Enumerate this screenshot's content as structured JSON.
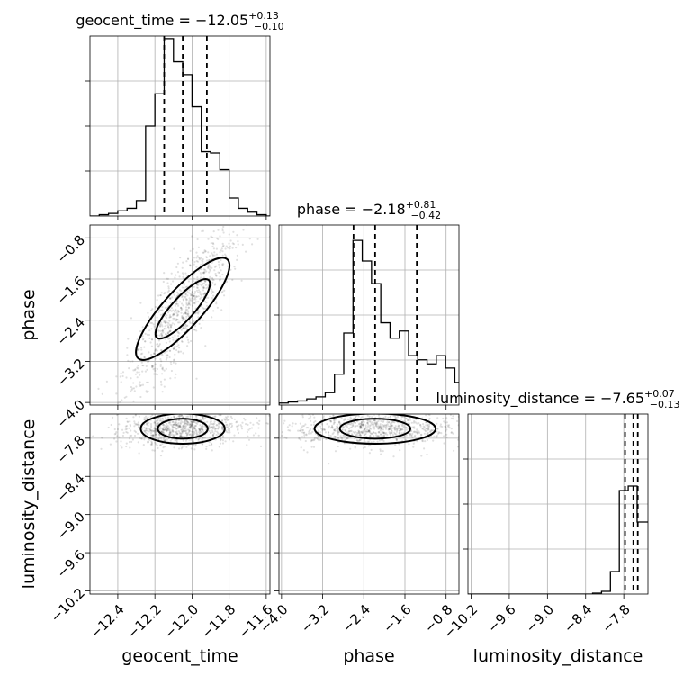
{
  "chart_data": {
    "type": "corner",
    "parameters": [
      "geocent_time",
      "phase",
      "luminosity_distance"
    ],
    "grid": true,
    "titles": [
      {
        "param": "geocent_time",
        "text": "geocent_time = −12.05",
        "sup": "+0.13",
        "sub": "−0.10"
      },
      {
        "param": "phase",
        "text": "phase = −2.18",
        "sup": "+0.81",
        "sub": "−0.42"
      },
      {
        "param": "luminosity_distance",
        "text": "luminosity_distance = −7.65",
        "sup": "+0.07",
        "sub": "−0.13"
      }
    ],
    "axes": {
      "geocent_time": {
        "label": "geocent_time",
        "range": [
          -12.55,
          -11.58
        ],
        "ticks": [
          -12.4,
          -12.2,
          -12.0,
          -11.8,
          -11.6
        ],
        "tick_labels": [
          "−12.4",
          "−12.2",
          "−12.0",
          "−11.8",
          "−11.6"
        ]
      },
      "phase": {
        "label": "phase",
        "range": [
          -4.05,
          -0.55
        ],
        "ticks": [
          -4.0,
          -3.2,
          -2.4,
          -1.6,
          -0.8
        ],
        "tick_labels": [
          "−4.0",
          "−3.2",
          "−2.4",
          "−1.6",
          "−0.8"
        ]
      },
      "luminosity_distance": {
        "label": "luminosity_distance",
        "range": [
          -10.25,
          -7.42
        ],
        "ticks": [
          -10.2,
          -9.6,
          -9.0,
          -8.4,
          -7.8
        ],
        "tick_labels": [
          "−10.2",
          "−9.6",
          "−9.0",
          "−8.4",
          "−7.8"
        ]
      }
    },
    "histograms": {
      "geocent_time": {
        "bin_edges": [
          -12.55,
          -12.5,
          -12.45,
          -12.4,
          -12.35,
          -12.3,
          -12.25,
          -12.2,
          -12.15,
          -12.1,
          -12.05,
          -12.0,
          -11.95,
          -11.9,
          -11.85,
          -11.8,
          -11.75,
          -11.7,
          -11.65,
          -11.6,
          -11.58
        ],
        "counts": [
          0,
          1,
          2,
          4,
          6,
          12,
          70,
          95,
          138,
          120,
          110,
          85,
          50,
          49,
          36,
          14,
          6,
          3,
          1,
          0
        ],
        "ymax": 140,
        "quantiles": [
          -12.15,
          -12.05,
          -11.92
        ]
      },
      "phase": {
        "bin_edges": [
          -4.05,
          -3.87,
          -3.69,
          -3.51,
          -3.33,
          -3.15,
          -2.97,
          -2.79,
          -2.61,
          -2.43,
          -2.25,
          -2.07,
          -1.89,
          -1.71,
          -1.53,
          -1.35,
          -1.17,
          -0.99,
          -0.81,
          -0.63,
          -0.55
        ],
        "counts": [
          2,
          3,
          4,
          6,
          8,
          12,
          30,
          70,
          160,
          140,
          118,
          80,
          65,
          72,
          48,
          44,
          40,
          48,
          36,
          22
        ],
        "ymax": 175,
        "quantiles": [
          -2.6,
          -2.18,
          -1.37
        ]
      },
      "luminosity_distance": {
        "bin_edges": [
          -10.25,
          -10.11,
          -9.97,
          -9.83,
          -9.69,
          -9.55,
          -9.41,
          -9.27,
          -9.13,
          -8.99,
          -8.85,
          -8.71,
          -8.57,
          -8.43,
          -8.29,
          -8.15,
          -8.01,
          -7.87,
          -7.73,
          -7.59,
          -7.42
        ],
        "counts": [
          0,
          0,
          0,
          0,
          0,
          0,
          0,
          0,
          0,
          0,
          0,
          0,
          0,
          0,
          1,
          3,
          25,
          115,
          120,
          80
        ],
        "ymax": 200,
        "quantiles": [
          -7.78,
          -7.65,
          -7.58
        ]
      }
    }
  }
}
